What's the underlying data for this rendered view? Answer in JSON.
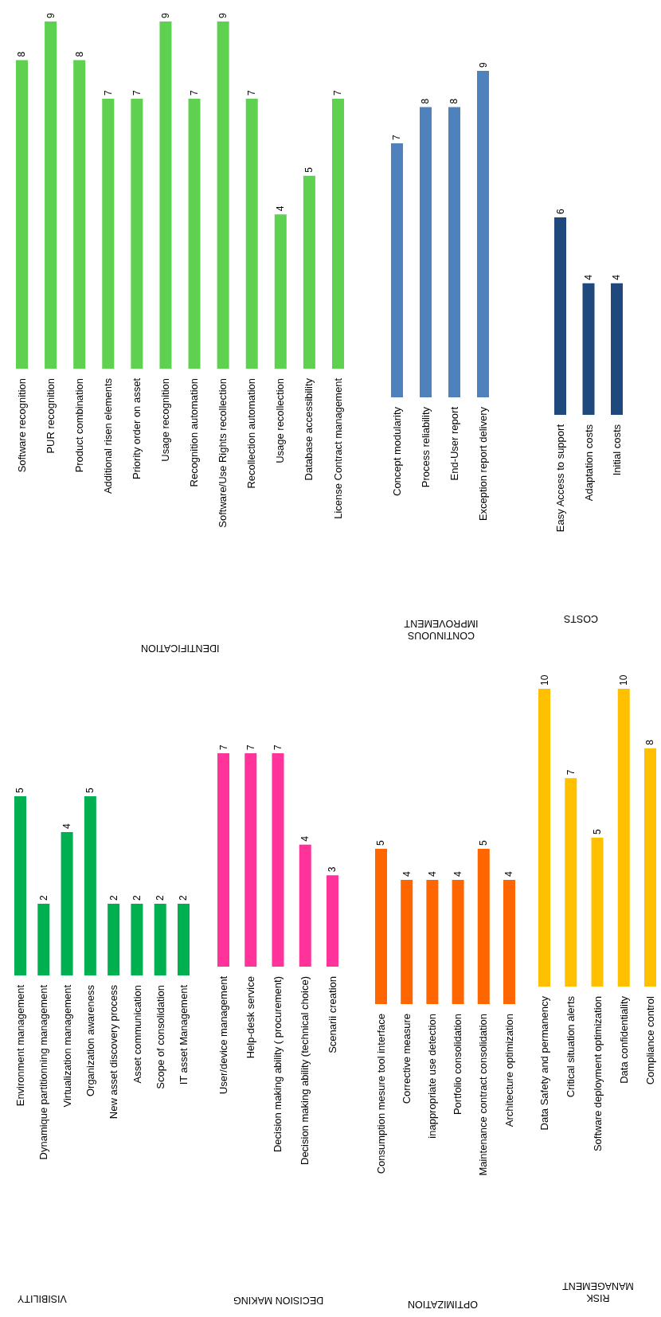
{
  "chart_data": [
    {
      "type": "bar",
      "title": "IDENTIFICATION",
      "categories": [
        "Software recognition",
        "PUR recognition",
        "Product combination",
        "Additional risen elements",
        "Priority order on asset",
        "Usage recognition",
        "Recognition automation",
        "Software/Use Rights recollection",
        "Recollection automation",
        "Usage recollection",
        "Database accessibility",
        "License Contract management"
      ],
      "values": [
        8,
        9,
        8,
        7,
        7,
        9,
        7,
        9,
        7,
        4,
        5,
        7
      ],
      "color": "#5fd150",
      "data_labels": true
    },
    {
      "type": "bar",
      "title": "CONTINUOUS IMPROVEMENT",
      "categories": [
        "Concept modularity",
        "Process reliability",
        "End-User report",
        "Exception report delivery"
      ],
      "values": [
        7,
        8,
        8,
        9
      ],
      "color": "#4f81bd",
      "data_labels": true
    },
    {
      "type": "bar",
      "title": "COSTS",
      "categories": [
        "Easy Access to support",
        "Adaptation costs",
        "Initial costs"
      ],
      "values": [
        6,
        4,
        4
      ],
      "color": "#1f497d",
      "data_labels": true
    },
    {
      "type": "bar",
      "title": "VISIBILITY",
      "categories": [
        "Environment management",
        "Dynamique partitionning  management",
        "Virtualization management",
        "Organization awareness",
        "New asset discovery process",
        "Asset communication",
        "Scope of consolidation",
        "IT asset Management"
      ],
      "values": [
        5,
        2,
        4,
        5,
        2,
        2,
        2,
        2
      ],
      "color": "#00b050",
      "data_labels": true
    },
    {
      "type": "bar",
      "title": "DECISION MAKING",
      "categories": [
        "User/device management",
        "Help-desk service",
        "Decision making ability  ( procurement)",
        "Decision making ability (technical choice)",
        "Scenarii creation"
      ],
      "values": [
        7,
        7,
        7,
        4,
        3
      ],
      "color": "#ff3399",
      "data_labels": true
    },
    {
      "type": "bar",
      "title": "OPTIMIZATION",
      "categories": [
        "Consumption mesure tool interface",
        "Corrective measure",
        "inappropriate use detection",
        "Portfolio consolidation",
        "Maintenance contract consolidation",
        "Architecture optimization"
      ],
      "values": [
        5,
        4,
        4,
        4,
        5,
        4
      ],
      "color": "#ff6600",
      "data_labels": true
    },
    {
      "type": "bar",
      "title": "RISK MANAGEMENT",
      "categories": [
        "Data Safety and permanency",
        "Critical situation alerts",
        "Software deployment optimization",
        "Data confidentiality",
        "Compliance control"
      ],
      "values": [
        10,
        7,
        5,
        10,
        8
      ],
      "color": "#ffc000",
      "data_labels": true
    }
  ]
}
